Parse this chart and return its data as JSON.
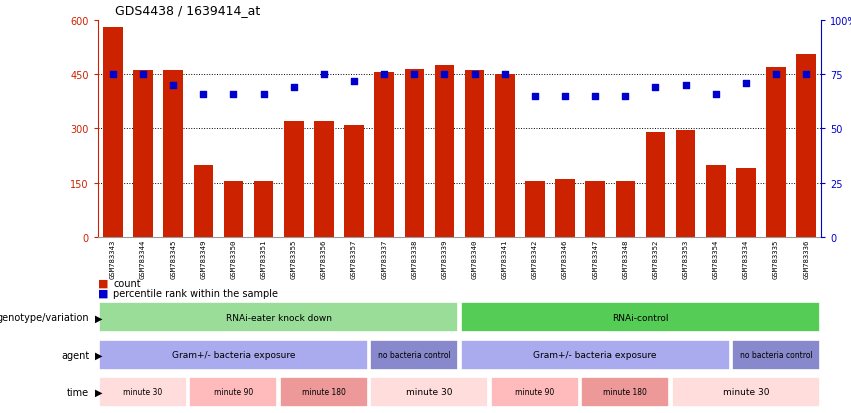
{
  "title": "GDS4438 / 1639414_at",
  "samples": [
    "GSM783343",
    "GSM783344",
    "GSM783345",
    "GSM783349",
    "GSM783350",
    "GSM783351",
    "GSM783355",
    "GSM783356",
    "GSM783357",
    "GSM783337",
    "GSM783338",
    "GSM783339",
    "GSM783340",
    "GSM783341",
    "GSM783342",
    "GSM783346",
    "GSM783347",
    "GSM783348",
    "GSM783352",
    "GSM783353",
    "GSM783354",
    "GSM783334",
    "GSM783335",
    "GSM783336"
  ],
  "counts": [
    580,
    460,
    460,
    200,
    155,
    155,
    320,
    320,
    310,
    455,
    465,
    475,
    460,
    450,
    155,
    160,
    155,
    155,
    290,
    295,
    200,
    190,
    470,
    505
  ],
  "percentiles": [
    75,
    75,
    70,
    66,
    66,
    66,
    69,
    75,
    72,
    75,
    75,
    75,
    75,
    75,
    65,
    65,
    65,
    65,
    69,
    70,
    66,
    71,
    75,
    75
  ],
  "ylim_left": [
    0,
    600
  ],
  "ylim_right": [
    0,
    100
  ],
  "yticks_left": [
    0,
    150,
    300,
    450,
    600
  ],
  "yticks_right": [
    0,
    25,
    50,
    75,
    100
  ],
  "bar_color": "#CC2200",
  "dot_color": "#0000CC",
  "background_color": "#ffffff",
  "genotype_row": {
    "label": "genotype/variation",
    "groups": [
      {
        "text": "RNAi-eater knock down",
        "span": [
          0,
          12
        ],
        "color": "#99DD99"
      },
      {
        "text": "RNAi-control",
        "span": [
          12,
          24
        ],
        "color": "#55CC55"
      }
    ]
  },
  "agent_row": {
    "label": "agent",
    "groups": [
      {
        "text": "Gram+/- bacteria exposure",
        "span": [
          0,
          9
        ],
        "color": "#AAAAEE"
      },
      {
        "text": "no bacteria control",
        "span": [
          9,
          12
        ],
        "color": "#8888CC"
      },
      {
        "text": "Gram+/- bacteria exposure",
        "span": [
          12,
          21
        ],
        "color": "#AAAAEE"
      },
      {
        "text": "no bacteria control",
        "span": [
          21,
          24
        ],
        "color": "#8888CC"
      }
    ]
  },
  "time_row": {
    "label": "time",
    "groups": [
      {
        "text": "minute 30",
        "span": [
          0,
          3
        ],
        "color": "#FFDDDD"
      },
      {
        "text": "minute 90",
        "span": [
          3,
          6
        ],
        "color": "#FFBBBB"
      },
      {
        "text": "minute 180",
        "span": [
          6,
          9
        ],
        "color": "#EE9999"
      },
      {
        "text": "minute 30",
        "span": [
          9,
          13
        ],
        "color": "#FFDDDD"
      },
      {
        "text": "minute 90",
        "span": [
          13,
          16
        ],
        "color": "#FFBBBB"
      },
      {
        "text": "minute 180",
        "span": [
          16,
          19
        ],
        "color": "#EE9999"
      },
      {
        "text": "minute 30",
        "span": [
          19,
          24
        ],
        "color": "#FFDDDD"
      }
    ]
  }
}
